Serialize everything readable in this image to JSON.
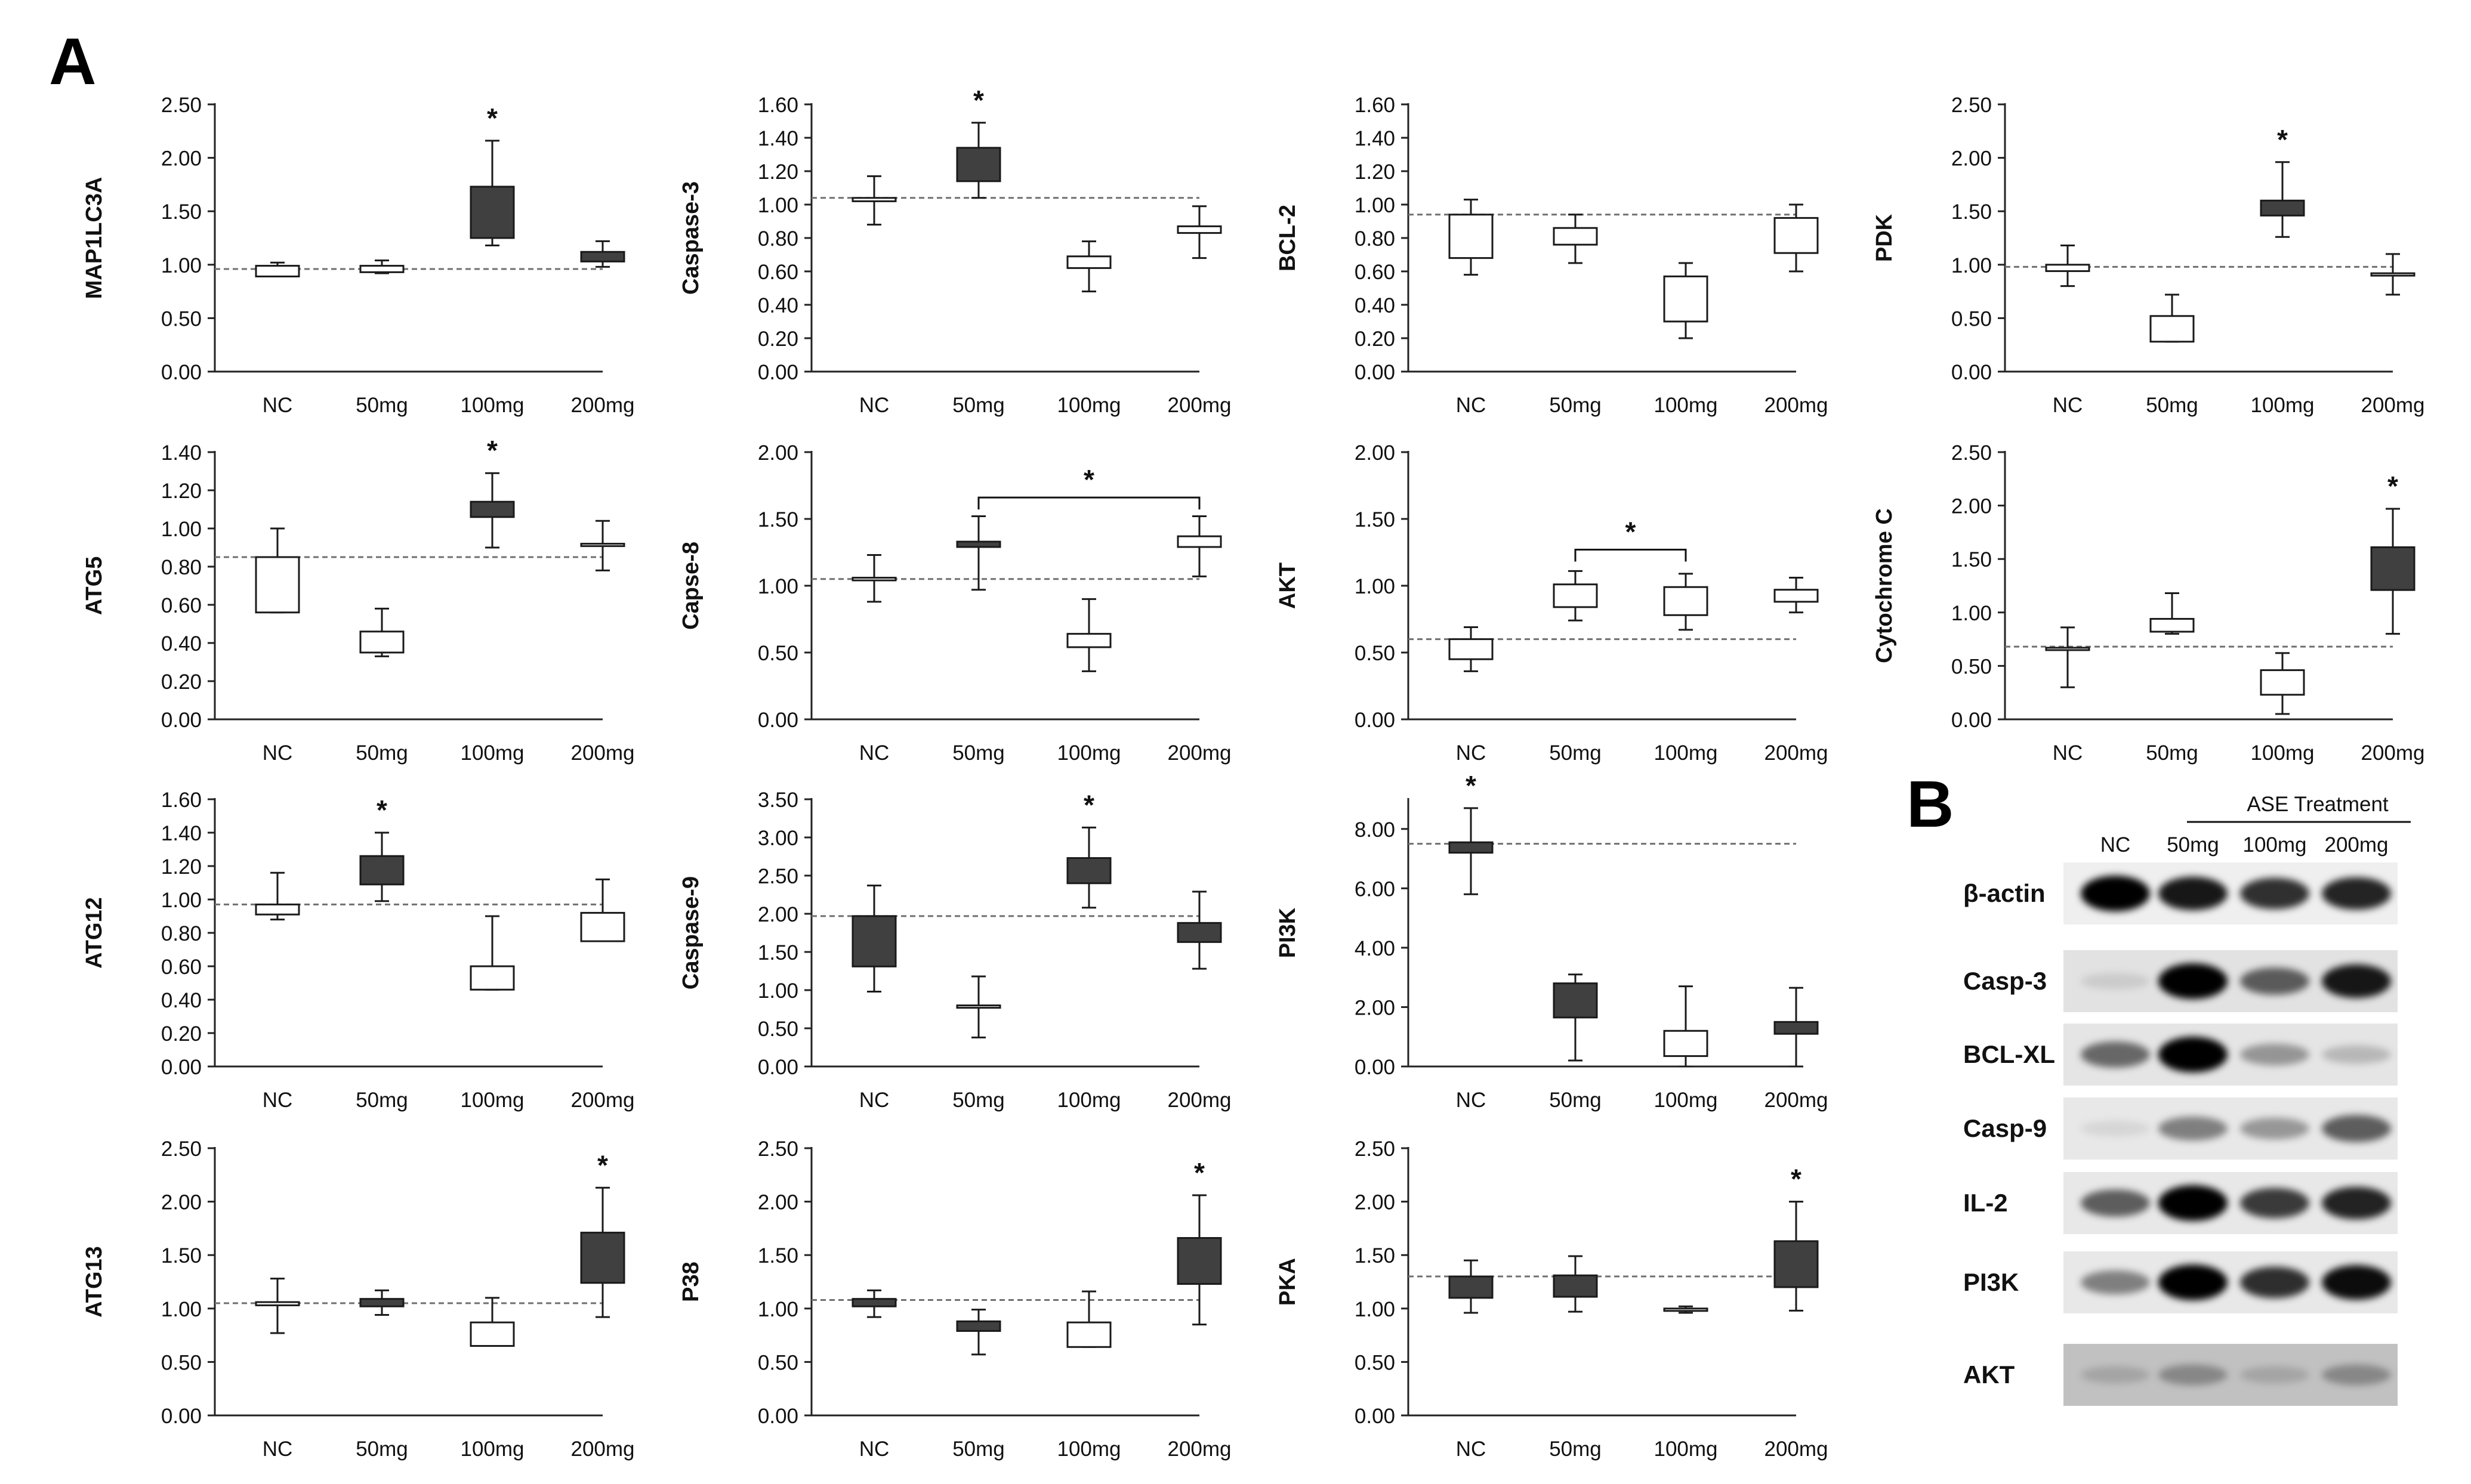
{
  "panel_labels": {
    "a": "A",
    "b": "B"
  },
  "colors": {
    "filled": "#404040",
    "open": "#ffffff",
    "stroke": "#1a1a1a",
    "refline": "#707070"
  },
  "chart_data": [
    {
      "type": "boxplot",
      "ylabel": "MAP1LC3A",
      "categories": [
        "NC",
        "50mg",
        "100mg",
        "200mg"
      ],
      "ylim": [
        0,
        2.5
      ],
      "yticks": [
        "0.00",
        "0.50",
        "1.00",
        "1.50",
        "2.00",
        "2.50"
      ],
      "reference_line": 0.96,
      "boxes": [
        {
          "q1": 0.89,
          "q3": 0.99,
          "min": 0.89,
          "max": 1.02,
          "filled": false,
          "star": false
        },
        {
          "q1": 0.93,
          "q3": 0.99,
          "min": 0.92,
          "max": 1.04,
          "filled": false,
          "star": false
        },
        {
          "q1": 1.25,
          "q3": 1.73,
          "min": 1.18,
          "max": 2.16,
          "filled": true,
          "star": true
        },
        {
          "q1": 1.03,
          "q3": 1.12,
          "min": 0.98,
          "max": 1.22,
          "filled": true,
          "star": false
        }
      ]
    },
    {
      "type": "boxplot",
      "ylabel": "Caspase-3",
      "categories": [
        "NC",
        "50mg",
        "100mg",
        "200mg"
      ],
      "ylim": [
        0,
        1.6
      ],
      "yticks": [
        "0.00",
        "0.20",
        "0.40",
        "0.60",
        "0.80",
        "1.00",
        "1.20",
        "1.40",
        "1.60"
      ],
      "reference_line": 1.04,
      "boxes": [
        {
          "q1": 1.02,
          "q3": 1.04,
          "min": 0.88,
          "max": 1.17,
          "filled": false,
          "star": false
        },
        {
          "q1": 1.14,
          "q3": 1.34,
          "min": 1.04,
          "max": 1.49,
          "filled": true,
          "star": true
        },
        {
          "q1": 0.62,
          "q3": 0.69,
          "min": 0.48,
          "max": 0.78,
          "filled": false,
          "star": false
        },
        {
          "q1": 0.83,
          "q3": 0.87,
          "min": 0.68,
          "max": 0.99,
          "filled": false,
          "star": false
        }
      ]
    },
    {
      "type": "boxplot",
      "ylabel": "BCL-2",
      "categories": [
        "NC",
        "50mg",
        "100mg",
        "200mg"
      ],
      "ylim": [
        0,
        1.6
      ],
      "yticks": [
        "0.00",
        "0.20",
        "0.40",
        "0.60",
        "0.80",
        "1.00",
        "1.20",
        "1.40",
        "1.60"
      ],
      "reference_line": 0.94,
      "boxes": [
        {
          "q1": 0.68,
          "q3": 0.94,
          "min": 0.58,
          "max": 1.03,
          "filled": false,
          "star": false
        },
        {
          "q1": 0.76,
          "q3": 0.86,
          "min": 0.65,
          "max": 0.94,
          "filled": false,
          "star": false
        },
        {
          "q1": 0.3,
          "q3": 0.57,
          "min": 0.2,
          "max": 0.65,
          "filled": false,
          "star": false
        },
        {
          "q1": 0.71,
          "q3": 0.92,
          "min": 0.6,
          "max": 1.0,
          "filled": false,
          "star": false
        }
      ]
    },
    {
      "type": "boxplot",
      "ylabel": "PDK",
      "categories": [
        "NC",
        "50mg",
        "100mg",
        "200mg"
      ],
      "ylim": [
        0,
        2.5
      ],
      "yticks": [
        "0.00",
        "0.50",
        "1.00",
        "1.50",
        "2.00",
        "2.50"
      ],
      "reference_line": 0.98,
      "boxes": [
        {
          "q1": 0.94,
          "q3": 1.0,
          "min": 0.8,
          "max": 1.18,
          "filled": false,
          "star": false
        },
        {
          "q1": 0.28,
          "q3": 0.52,
          "min": 0.28,
          "max": 0.72,
          "filled": false,
          "star": false
        },
        {
          "q1": 1.46,
          "q3": 1.6,
          "min": 1.26,
          "max": 1.96,
          "filled": true,
          "star": true
        },
        {
          "q1": 0.9,
          "q3": 0.92,
          "min": 0.72,
          "max": 1.1,
          "filled": false,
          "star": false
        }
      ]
    },
    {
      "type": "boxplot",
      "ylabel": "ATG5",
      "categories": [
        "NC",
        "50mg",
        "100mg",
        "200mg"
      ],
      "ylim": [
        0,
        1.4
      ],
      "yticks": [
        "0.00",
        "0.20",
        "0.40",
        "0.60",
        "0.80",
        "1.00",
        "1.20",
        "1.40"
      ],
      "reference_line": 0.85,
      "boxes": [
        {
          "q1": 0.56,
          "q3": 0.85,
          "min": 0.56,
          "max": 1.0,
          "filled": false,
          "star": false
        },
        {
          "q1": 0.35,
          "q3": 0.46,
          "min": 0.33,
          "max": 0.58,
          "filled": false,
          "star": false
        },
        {
          "q1": 1.06,
          "q3": 1.14,
          "min": 0.9,
          "max": 1.29,
          "filled": true,
          "star": true
        },
        {
          "q1": 0.91,
          "q3": 0.92,
          "min": 0.78,
          "max": 1.04,
          "filled": false,
          "star": false
        }
      ]
    },
    {
      "type": "boxplot",
      "ylabel": "Capse-8",
      "categories": [
        "NC",
        "50mg",
        "100mg",
        "200mg"
      ],
      "ylim": [
        0,
        2.0
      ],
      "yticks": [
        "0.00",
        "0.50",
        "1.00",
        "1.50",
        "2.00"
      ],
      "reference_line": 1.05,
      "boxes": [
        {
          "q1": 1.04,
          "q3": 1.06,
          "min": 0.88,
          "max": 1.23,
          "filled": false,
          "star": false
        },
        {
          "q1": 1.29,
          "q3": 1.33,
          "min": 0.97,
          "max": 1.52,
          "filled": true,
          "star": false
        },
        {
          "q1": 0.54,
          "q3": 0.64,
          "min": 0.36,
          "max": 0.9,
          "filled": false,
          "star": false
        },
        {
          "q1": 1.29,
          "q3": 1.37,
          "min": 1.07,
          "max": 1.52,
          "filled": false,
          "star": false
        }
      ],
      "brackets": [
        {
          "from": 1,
          "to": 3,
          "label": "*",
          "at": 1.66
        }
      ]
    },
    {
      "type": "boxplot",
      "ylabel": "AKT",
      "categories": [
        "NC",
        "50mg",
        "100mg",
        "200mg"
      ],
      "ylim": [
        0,
        2.0
      ],
      "yticks": [
        "0.00",
        "0.50",
        "1.00",
        "1.50",
        "2.00"
      ],
      "reference_line": 0.6,
      "boxes": [
        {
          "q1": 0.45,
          "q3": 0.6,
          "min": 0.36,
          "max": 0.69,
          "filled": false,
          "star": false
        },
        {
          "q1": 0.84,
          "q3": 1.01,
          "min": 0.74,
          "max": 1.11,
          "filled": false,
          "star": false
        },
        {
          "q1": 0.78,
          "q3": 0.99,
          "min": 0.67,
          "max": 1.09,
          "filled": false,
          "star": false
        },
        {
          "q1": 0.88,
          "q3": 0.97,
          "min": 0.8,
          "max": 1.06,
          "filled": false,
          "star": false
        }
      ],
      "brackets": [
        {
          "from": 1,
          "to": 2,
          "label": "*",
          "at": 1.27
        }
      ]
    },
    {
      "type": "boxplot",
      "ylabel": "Cytochrome C",
      "categories": [
        "NC",
        "50mg",
        "100mg",
        "200mg"
      ],
      "ylim": [
        0,
        2.5
      ],
      "yticks": [
        "0.00",
        "0.50",
        "1.00",
        "1.50",
        "2.00",
        "2.50"
      ],
      "reference_line": 0.68,
      "boxes": [
        {
          "q1": 0.65,
          "q3": 0.67,
          "min": 0.3,
          "max": 0.86,
          "filled": false,
          "star": false
        },
        {
          "q1": 0.82,
          "q3": 0.94,
          "min": 0.8,
          "max": 1.18,
          "filled": false,
          "star": false
        },
        {
          "q1": 0.23,
          "q3": 0.46,
          "min": 0.05,
          "max": 0.62,
          "filled": false,
          "star": false
        },
        {
          "q1": 1.21,
          "q3": 1.61,
          "min": 0.8,
          "max": 1.97,
          "filled": true,
          "star": true
        }
      ]
    },
    {
      "type": "boxplot",
      "ylabel": "ATG12",
      "categories": [
        "NC",
        "50mg",
        "100mg",
        "200mg"
      ],
      "ylim": [
        0,
        1.6
      ],
      "yticks": [
        "0.00",
        "0.20",
        "0.40",
        "0.60",
        "0.80",
        "1.00",
        "1.20",
        "1.40",
        "1.60"
      ],
      "reference_line": 0.97,
      "boxes": [
        {
          "q1": 0.91,
          "q3": 0.97,
          "min": 0.88,
          "max": 1.16,
          "filled": false,
          "star": false
        },
        {
          "q1": 1.09,
          "q3": 1.26,
          "min": 0.99,
          "max": 1.4,
          "filled": true,
          "star": true
        },
        {
          "q1": 0.46,
          "q3": 0.6,
          "min": 0.46,
          "max": 0.9,
          "filled": false,
          "star": false
        },
        {
          "q1": 0.75,
          "q3": 0.92,
          "min": 0.75,
          "max": 1.12,
          "filled": false,
          "star": false
        }
      ]
    },
    {
      "type": "boxplot",
      "ylabel": "Caspase-9",
      "categories": [
        "NC",
        "50mg",
        "100mg",
        "200mg"
      ],
      "ylim": [
        0,
        3.5
      ],
      "yticks": [
        "0.00",
        "0.50",
        "1.00",
        "1.50",
        "2.00",
        "2.50",
        "3.00",
        "3.50"
      ],
      "reference_line": 1.97,
      "boxes": [
        {
          "q1": 1.31,
          "q3": 1.97,
          "min": 0.98,
          "max": 2.37,
          "filled": true,
          "star": false
        },
        {
          "q1": 0.78,
          "q3": 0.8,
          "min": 0.38,
          "max": 1.18,
          "filled": false,
          "star": false
        },
        {
          "q1": 2.4,
          "q3": 2.73,
          "min": 2.08,
          "max": 3.13,
          "filled": true,
          "star": true
        },
        {
          "q1": 1.63,
          "q3": 1.88,
          "min": 1.28,
          "max": 2.29,
          "filled": true,
          "star": false
        }
      ]
    },
    {
      "type": "boxplot",
      "ylabel": "PI3K",
      "categories": [
        "NC",
        "50mg",
        "100mg",
        "200mg"
      ],
      "ylim": [
        0,
        9
      ],
      "yticks": [
        "0.00",
        "2.00",
        "4.00",
        "6.00",
        "8.00"
      ],
      "reference_line": 7.5,
      "boxes": [
        {
          "q1": 7.2,
          "q3": 7.55,
          "min": 5.8,
          "max": 8.7,
          "filled": true,
          "star": true
        },
        {
          "q1": 1.65,
          "q3": 2.8,
          "min": 0.2,
          "max": 3.1,
          "filled": true,
          "star": false
        },
        {
          "q1": 0.35,
          "q3": 1.2,
          "min": 0.0,
          "max": 2.7,
          "filled": false,
          "star": false
        },
        {
          "q1": 1.1,
          "q3": 1.5,
          "min": 0.0,
          "max": 2.65,
          "filled": true,
          "star": false
        }
      ]
    },
    {
      "type": "empty"
    },
    {
      "type": "boxplot",
      "ylabel": "ATG13",
      "categories": [
        "NC",
        "50mg",
        "100mg",
        "200mg"
      ],
      "ylim": [
        0,
        2.5
      ],
      "yticks": [
        "0.00",
        "0.50",
        "1.00",
        "1.50",
        "2.00",
        "2.50"
      ],
      "reference_line": 1.05,
      "boxes": [
        {
          "q1": 1.03,
          "q3": 1.06,
          "min": 0.77,
          "max": 1.28,
          "filled": false,
          "star": false
        },
        {
          "q1": 1.02,
          "q3": 1.09,
          "min": 0.94,
          "max": 1.17,
          "filled": true,
          "star": false
        },
        {
          "q1": 0.65,
          "q3": 0.87,
          "min": 0.65,
          "max": 1.1,
          "filled": false,
          "star": false
        },
        {
          "q1": 1.24,
          "q3": 1.71,
          "min": 0.92,
          "max": 2.13,
          "filled": true,
          "star": true
        }
      ]
    },
    {
      "type": "boxplot",
      "ylabel": "P38",
      "categories": [
        "NC",
        "50mg",
        "100mg",
        "200mg"
      ],
      "ylim": [
        0,
        2.5
      ],
      "yticks": [
        "0.00",
        "0.50",
        "1.00",
        "1.50",
        "2.00",
        "2.50"
      ],
      "reference_line": 1.08,
      "boxes": [
        {
          "q1": 1.02,
          "q3": 1.09,
          "min": 0.92,
          "max": 1.17,
          "filled": true,
          "star": false
        },
        {
          "q1": 0.79,
          "q3": 0.88,
          "min": 0.57,
          "max": 0.99,
          "filled": true,
          "star": false
        },
        {
          "q1": 0.64,
          "q3": 0.87,
          "min": 0.64,
          "max": 1.16,
          "filled": false,
          "star": false
        },
        {
          "q1": 1.23,
          "q3": 1.66,
          "min": 0.85,
          "max": 2.06,
          "filled": true,
          "star": true
        }
      ]
    },
    {
      "type": "boxplot",
      "ylabel": "PKA",
      "categories": [
        "NC",
        "50mg",
        "100mg",
        "200mg"
      ],
      "ylim": [
        0,
        2.5
      ],
      "yticks": [
        "0.00",
        "0.50",
        "1.00",
        "1.50",
        "2.00",
        "2.50"
      ],
      "reference_line": 1.3,
      "boxes": [
        {
          "q1": 1.1,
          "q3": 1.3,
          "min": 0.96,
          "max": 1.45,
          "filled": true,
          "star": false
        },
        {
          "q1": 1.11,
          "q3": 1.31,
          "min": 0.97,
          "max": 1.49,
          "filled": true,
          "star": false
        },
        {
          "q1": 0.98,
          "q3": 1.0,
          "min": 0.96,
          "max": 1.02,
          "filled": false,
          "star": false
        },
        {
          "q1": 1.2,
          "q3": 1.63,
          "min": 0.98,
          "max": 2.0,
          "filled": true,
          "star": true
        }
      ]
    }
  ],
  "blot": {
    "treatment_label": "ASE Treatment",
    "lanes": [
      "NC",
      "50mg",
      "100mg",
      "200mg"
    ],
    "rows": [
      {
        "protein": "β-actin",
        "intensity": [
          1.0,
          0.9,
          0.8,
          0.85
        ],
        "bg": 0.05
      },
      {
        "protein": "Casp-3",
        "intensity": [
          0.1,
          1.0,
          0.6,
          0.9
        ],
        "bg": 0.15
      },
      {
        "protein": "BCL-XL",
        "intensity": [
          0.55,
          1.0,
          0.35,
          0.2
        ],
        "bg": 0.12
      },
      {
        "protein": "Casp-9",
        "intensity": [
          0.08,
          0.45,
          0.35,
          0.6
        ],
        "bg": 0.1
      },
      {
        "protein": "IL-2",
        "intensity": [
          0.6,
          1.0,
          0.75,
          0.85
        ],
        "bg": 0.1
      },
      {
        "protein": "PI3K",
        "intensity": [
          0.45,
          1.0,
          0.8,
          0.95
        ],
        "bg": 0.1
      },
      {
        "protein": "AKT",
        "intensity": [
          0.15,
          0.3,
          0.15,
          0.3
        ],
        "bg": 0.4
      }
    ]
  }
}
